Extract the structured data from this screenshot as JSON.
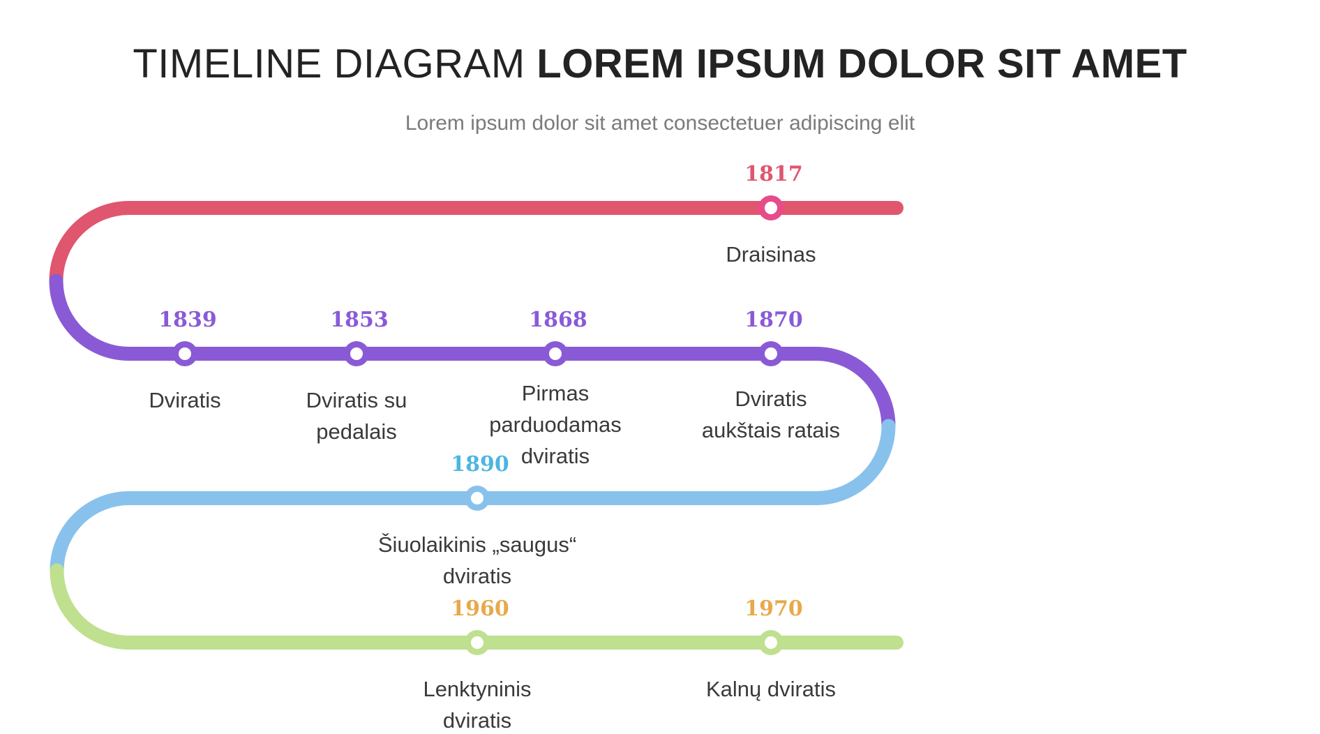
{
  "title_light": "TIMELINE DIAGRAM",
  "title_bold": "LOREM IPSUM DOLOR SIT AMET",
  "subtitle": "Lorem ipsum dolor sit amet consectetuer adipiscing elit",
  "colors": {
    "row1": "#e0566f",
    "row1_marker": "#e84b8a",
    "row2": "#8a5ad6",
    "row3": "#88c2ec",
    "row3_year": "#4db6e0",
    "row4": "#bfe08f",
    "row4_year": "#e8a94a"
  },
  "events": [
    {
      "year": "1817",
      "label_lines": [
        "Draisinas"
      ]
    },
    {
      "year": "1839",
      "label_lines": [
        "Dviratis"
      ]
    },
    {
      "year": "1853",
      "label_lines": [
        "Dviratis su",
        "pedalais"
      ]
    },
    {
      "year": "1868",
      "label_lines": [
        "Pirmas",
        "parduodamas",
        "dviratis"
      ]
    },
    {
      "year": "1870",
      "label_lines": [
        "Dviratis",
        "aukštais ratais"
      ]
    },
    {
      "year": "1890",
      "label_lines": [
        "Šiuolaikinis „saugus“",
        "dviratis"
      ]
    },
    {
      "year": "1960",
      "label_lines": [
        "Lenktyninis",
        "dviratis"
      ]
    },
    {
      "year": "1970",
      "label_lines": [
        "Kalnų dviratis"
      ]
    }
  ]
}
